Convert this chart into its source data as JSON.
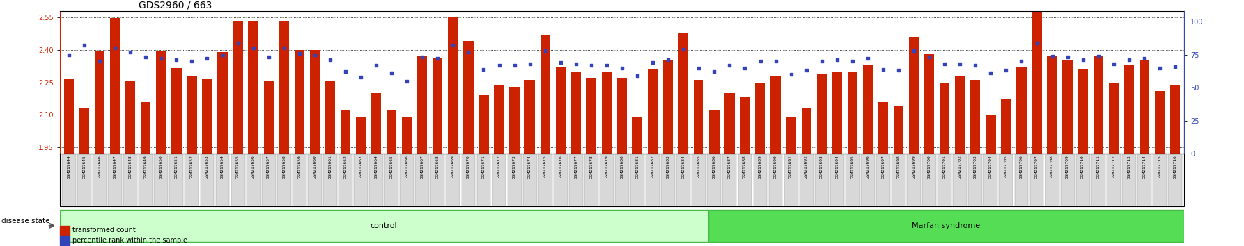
{
  "title": "GDS2960 / 663",
  "samples": [
    "GSM217644",
    "GSM217645",
    "GSM217646",
    "GSM217647",
    "GSM217648",
    "GSM217649",
    "GSM217650",
    "GSM217651",
    "GSM217652",
    "GSM217653",
    "GSM217654",
    "GSM217655",
    "GSM217656",
    "GSM217657",
    "GSM217658",
    "GSM217659",
    "GSM217660",
    "GSM217661",
    "GSM217662",
    "GSM217663",
    "GSM217664",
    "GSM217665",
    "GSM217666",
    "GSM217667",
    "GSM217668",
    "GSM217669",
    "GSM217670",
    "GSM217671",
    "GSM217672",
    "GSM217673",
    "GSM217674",
    "GSM217675",
    "GSM217676",
    "GSM217677",
    "GSM217678",
    "GSM217679",
    "GSM217680",
    "GSM217681",
    "GSM217682",
    "GSM217683",
    "GSM217684",
    "GSM217685",
    "GSM217686",
    "GSM217687",
    "GSM217688",
    "GSM217689",
    "GSM217690",
    "GSM217691",
    "GSM217692",
    "GSM217693",
    "GSM217694",
    "GSM217695",
    "GSM217696",
    "GSM217697",
    "GSM217698",
    "GSM217699",
    "GSM217700",
    "GSM217701",
    "GSM217702",
    "GSM217703",
    "GSM217704",
    "GSM217705",
    "GSM217706",
    "GSM217707",
    "GSM217708",
    "GSM217709",
    "GSM217710",
    "GSM217711",
    "GSM217712",
    "GSM217713",
    "GSM217714",
    "GSM217715",
    "GSM217716"
  ],
  "bar_values": [
    2.265,
    2.13,
    2.395,
    2.547,
    2.258,
    2.16,
    2.395,
    2.315,
    2.28,
    2.265,
    2.39,
    2.535,
    2.535,
    2.258,
    2.535,
    2.4,
    2.4,
    2.255,
    2.12,
    2.09,
    2.2,
    2.12,
    2.09,
    2.375,
    2.36,
    2.55,
    2.44,
    2.19,
    2.24,
    2.23,
    2.26,
    2.47,
    2.32,
    2.3,
    2.27,
    2.3,
    2.27,
    2.09,
    2.31,
    2.35,
    2.48,
    2.26,
    2.12,
    2.2,
    2.18,
    2.25,
    2.28,
    2.09,
    2.13,
    2.29,
    2.3,
    2.3,
    2.33,
    2.16,
    2.14,
    2.46,
    2.38,
    2.25,
    2.28,
    2.26,
    2.1,
    2.17,
    2.32,
    2.58,
    2.37,
    2.35,
    2.31,
    2.37,
    2.25,
    2.33,
    2.35,
    2.21,
    2.24
  ],
  "dot_values": [
    75,
    82,
    70,
    80,
    77,
    73,
    72,
    71,
    70,
    72,
    75,
    84,
    80,
    73,
    80,
    76,
    75,
    71,
    62,
    58,
    67,
    61,
    55,
    73,
    72,
    82,
    77,
    64,
    67,
    67,
    68,
    78,
    69,
    68,
    67,
    67,
    65,
    59,
    69,
    71,
    79,
    65,
    62,
    67,
    65,
    70,
    70,
    60,
    63,
    70,
    71,
    70,
    72,
    64,
    63,
    78,
    73,
    68,
    68,
    67,
    61,
    63,
    70,
    84,
    74,
    73,
    71,
    74,
    68,
    71,
    72,
    65,
    66
  ],
  "control_count": 42,
  "marfan_count": 31,
  "ylim_left": [
    1.92,
    2.58
  ],
  "ylim_right": [
    0,
    108
  ],
  "yticks_left": [
    1.95,
    2.1,
    2.25,
    2.4,
    2.55
  ],
  "yticks_right": [
    0,
    25,
    50,
    75,
    100
  ],
  "bar_color": "#cc2200",
  "dot_color": "#3344bb",
  "control_color": "#ccffcc",
  "marfan_color": "#55dd55",
  "control_label": "control",
  "marfan_label": "Marfan syndrome",
  "legend_bar": "transformed count",
  "legend_dot": "percentile rank within the sample",
  "disease_state_label": "disease state",
  "title_fontsize": 10,
  "tick_fontsize": 4.5,
  "band_fontsize": 8,
  "legend_fontsize": 7
}
